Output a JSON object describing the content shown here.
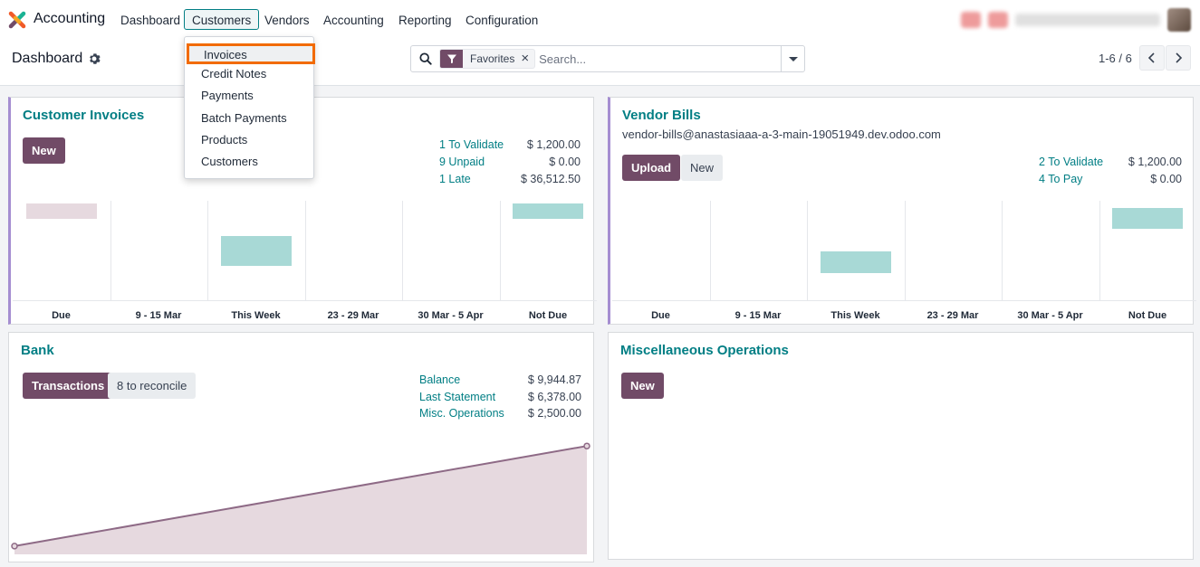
{
  "navbar": {
    "app_name": "Accounting",
    "menus": [
      "Dashboard",
      "Customers",
      "Vendors",
      "Accounting",
      "Reporting",
      "Configuration"
    ],
    "active_menu": "Customers",
    "brand_color": "#714b67",
    "accent_color": "#017e84"
  },
  "control_panel": {
    "breadcrumb": "Dashboard",
    "search": {
      "facet_label": "Favorites",
      "placeholder": "Search..."
    },
    "pager": "1-6 / 6"
  },
  "dropdown": {
    "items": [
      "Invoices",
      "Credit Notes",
      "Payments",
      "Batch Payments",
      "Products",
      "Customers"
    ],
    "highlighted": "Invoices"
  },
  "cards": {
    "customer_invoices": {
      "title": "Customer Invoices",
      "new_label": "New",
      "stats": [
        {
          "label": "1 To Validate",
          "value": "$ 1,200.00"
        },
        {
          "label": "9 Unpaid",
          "value": "$ 0.00"
        },
        {
          "label": "1 Late",
          "value": "$ 36,512.50"
        }
      ]
    },
    "vendor_bills": {
      "title": "Vendor Bills",
      "email": "vendor-bills@anastasiaaa-a-3-main-19051949.dev.odoo.com",
      "upload_label": "Upload",
      "new_label": "New",
      "stats": [
        {
          "label": "2 To Validate",
          "value": "$ 1,200.00"
        },
        {
          "label": "4 To Pay",
          "value": "$ 0.00"
        }
      ]
    },
    "bank": {
      "title": "Bank",
      "transactions_label": "Transactions",
      "reconcile_label": "8 to reconcile",
      "stats": [
        {
          "label": "Balance",
          "value": "$ 9,944.87"
        },
        {
          "label": "Last Statement",
          "value": "$ 6,378.00"
        },
        {
          "label": "Misc. Operations",
          "value": "$ 2,500.00"
        }
      ]
    },
    "misc": {
      "title": "Miscellaneous Operations",
      "new_label": "New"
    }
  },
  "chart_data": [
    {
      "type": "bar",
      "chart": "customer_invoices",
      "categories": [
        "Due",
        "9 - 15 Mar",
        "This Week",
        "23 - 29 Mar",
        "30 Mar - 5 Apr",
        "Not Due"
      ],
      "series": [
        {
          "values": [
            0.25,
            0,
            0.5,
            0,
            0,
            0.25
          ],
          "offset_top": [
            0.03,
            0,
            0.35,
            0,
            0,
            0.03
          ]
        }
      ],
      "colors": [
        "#e6d9df",
        "#a8d9d6"
      ]
    },
    {
      "type": "bar",
      "chart": "vendor_bills",
      "categories": [
        "Due",
        "9 - 15 Mar",
        "This Week",
        "23 - 29 Mar",
        "30 Mar - 5 Apr",
        "Not Due"
      ],
      "series": [
        {
          "values": [
            0,
            0,
            0.36,
            0,
            0,
            0.36
          ],
          "offset_top": [
            0,
            0,
            0.51,
            0,
            0,
            0.07
          ]
        }
      ],
      "colors": [
        "#a8d9d6"
      ]
    },
    {
      "type": "area",
      "chart": "bank",
      "x": [
        0,
        1
      ],
      "values": [
        0.06,
        0.99
      ],
      "line_color": "#8e6a86",
      "fill_color": "#e6d9df"
    }
  ]
}
